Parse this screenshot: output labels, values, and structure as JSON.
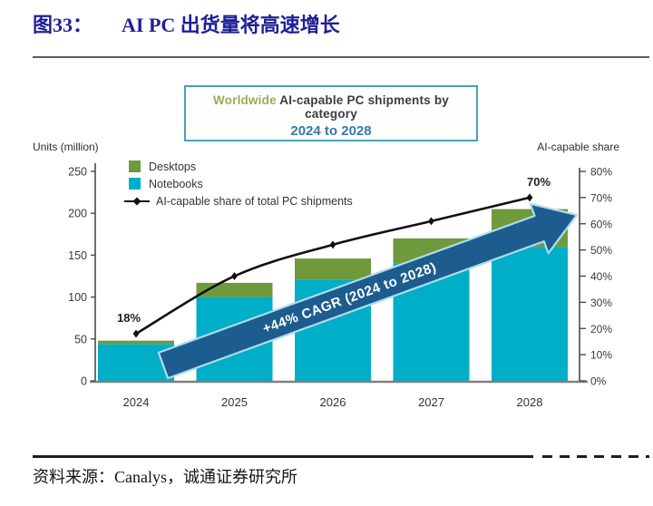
{
  "header": {
    "figure_label": "图33：",
    "title": "AI PC 出货量将高速增长"
  },
  "footer": {
    "source": "资料来源：Canalys，诚通证券研究所"
  },
  "chart_data": {
    "type": "bar",
    "subtype": "stacked-bars-with-line",
    "title_line1_highlight": "Worldwide",
    "title_line1_rest": " AI-capable PC shipments by category",
    "title_line2": "2024 to 2028",
    "left_axis_label": "Units (million)",
    "right_axis_label": "AI-capable share",
    "categories": [
      "2024",
      "2025",
      "2026",
      "2027",
      "2028"
    ],
    "series": [
      {
        "name": "Desktops",
        "type": "bar",
        "color": "#6f9a3b",
        "axis": "left",
        "values": [
          4,
          17,
          25,
          30,
          45
        ]
      },
      {
        "name": "Notebooks",
        "type": "bar",
        "color": "#00aec7",
        "axis": "left",
        "values": [
          44,
          100,
          121,
          140,
          160
        ]
      },
      {
        "name": "AI-capable share of total PC shipments",
        "type": "line",
        "color": "#111111",
        "axis": "right",
        "values": [
          18,
          40,
          52,
          61,
          70
        ]
      }
    ],
    "point_labels": [
      {
        "index": 0,
        "text": "18%"
      },
      {
        "index": 4,
        "text": "70%"
      }
    ],
    "left_ticks": [
      0,
      50,
      100,
      150,
      200,
      250
    ],
    "right_ticks": [
      "0%",
      "10%",
      "20%",
      "30%",
      "40%",
      "50%",
      "60%",
      "70%",
      "80%"
    ],
    "left_range": [
      0,
      250
    ],
    "right_range": [
      0,
      80
    ],
    "grid": false,
    "legend_position": "top-left",
    "annotation_arrow": {
      "text": "+44% CAGR (2024 to 2028)",
      "fill": "#1d5c8e",
      "border": "#aedbed"
    },
    "axis_color": "#808080"
  }
}
